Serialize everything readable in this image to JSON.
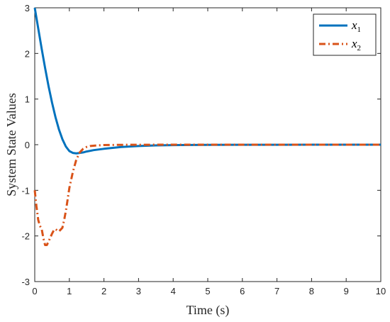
{
  "chart_data": {
    "type": "line",
    "title": "",
    "xlabel": "Time (s)",
    "ylabel": "System State Values",
    "xlim": [
      0,
      10
    ],
    "ylim": [
      -3,
      3
    ],
    "xticks": [
      "0",
      "1",
      "2",
      "3",
      "4",
      "5",
      "6",
      "7",
      "8",
      "9",
      "10"
    ],
    "yticks": [
      "3",
      "2",
      "1",
      "0",
      "-1",
      "-2",
      "-3"
    ],
    "grid": false,
    "legend_position": "top-right",
    "series": [
      {
        "name": "x1",
        "legend_main": "x",
        "legend_sub": "1",
        "color": "#0072BD",
        "style": "solid",
        "x": [
          0,
          0.1,
          0.2,
          0.3,
          0.4,
          0.5,
          0.6,
          0.7,
          0.8,
          0.9,
          1.0,
          1.1,
          1.2,
          1.3,
          1.4,
          1.5,
          1.7,
          2.0,
          2.5,
          3.0,
          3.5,
          4.0,
          5.0,
          6.0,
          7.0,
          8.0,
          9.0,
          10.0
        ],
        "y": [
          3.0,
          2.55,
          2.1,
          1.68,
          1.28,
          0.92,
          0.6,
          0.33,
          0.12,
          -0.04,
          -0.14,
          -0.18,
          -0.19,
          -0.18,
          -0.17,
          -0.15,
          -0.12,
          -0.09,
          -0.05,
          -0.03,
          -0.015,
          -0.01,
          -0.004,
          -0.002,
          -0.001,
          0,
          0,
          0
        ]
      },
      {
        "name": "x2",
        "legend_main": "x",
        "legend_sub": "2",
        "color": "#D95319",
        "style": "dash-dot",
        "x": [
          0,
          0.05,
          0.1,
          0.15,
          0.2,
          0.25,
          0.3,
          0.35,
          0.4,
          0.5,
          0.55,
          0.6,
          0.65,
          0.7,
          0.75,
          0.8,
          0.85,
          0.9,
          0.95,
          1.0,
          1.1,
          1.2,
          1.3,
          1.4,
          1.5,
          1.6,
          1.8,
          2.0,
          2.5,
          3.0,
          4.0,
          6.0,
          8.0,
          10.0
        ],
        "y": [
          -1.0,
          -1.35,
          -1.65,
          -1.78,
          -1.85,
          -2.05,
          -2.2,
          -2.2,
          -2.12,
          -1.95,
          -1.88,
          -1.85,
          -1.88,
          -1.9,
          -1.86,
          -1.82,
          -1.65,
          -1.45,
          -1.2,
          -0.95,
          -0.6,
          -0.33,
          -0.17,
          -0.09,
          -0.05,
          -0.03,
          -0.015,
          -0.008,
          -0.003,
          -0.001,
          0,
          0,
          0,
          0
        ]
      }
    ]
  }
}
